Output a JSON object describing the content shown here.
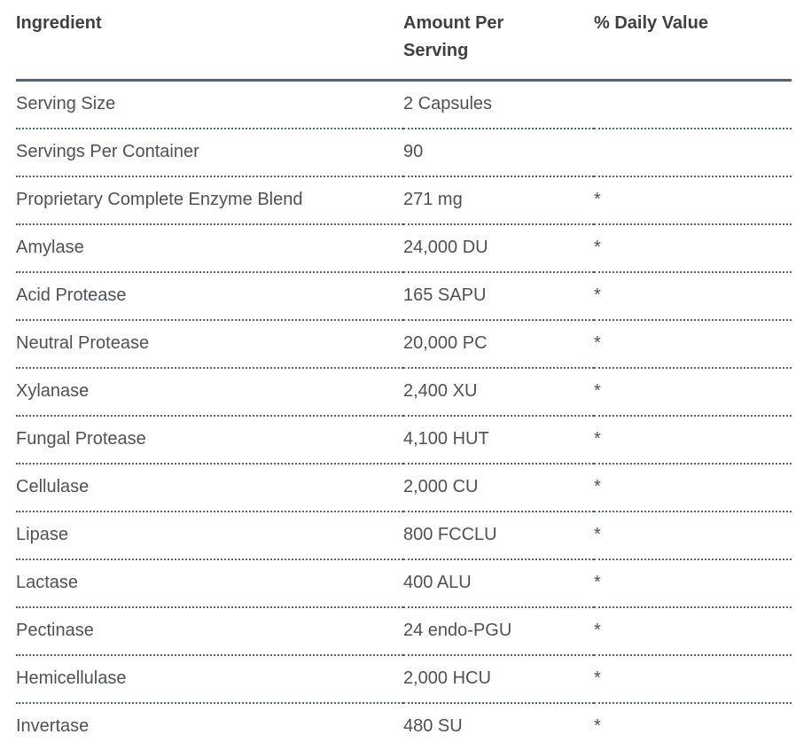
{
  "table": {
    "columns": [
      {
        "key": "ingredient",
        "label": "Ingredient"
      },
      {
        "key": "amount",
        "label": "Amount Per Serving"
      },
      {
        "key": "dv",
        "label": "% Daily Value"
      }
    ],
    "rows": [
      {
        "ingredient": "Serving Size",
        "amount": "2 Capsules",
        "dv": ""
      },
      {
        "ingredient": "Servings Per Container",
        "amount": "90",
        "dv": ""
      },
      {
        "ingredient": "Proprietary Complete Enzyme Blend",
        "amount": "271 mg",
        "dv": "*"
      },
      {
        "ingredient": "Amylase",
        "amount": "24,000 DU",
        "dv": "*"
      },
      {
        "ingredient": "Acid Protease",
        "amount": "165 SAPU",
        "dv": "*"
      },
      {
        "ingredient": "Neutral Protease",
        "amount": "20,000 PC",
        "dv": "*"
      },
      {
        "ingredient": "Xylanase",
        "amount": "2,400 XU",
        "dv": "*"
      },
      {
        "ingredient": "Fungal Protease",
        "amount": "4,100 HUT",
        "dv": "*"
      },
      {
        "ingredient": "Cellulase",
        "amount": "2,000 CU",
        "dv": "*"
      },
      {
        "ingredient": "Lipase",
        "amount": "800 FCCLU",
        "dv": "*"
      },
      {
        "ingredient": "Lactase",
        "amount": "400 ALU",
        "dv": "*"
      },
      {
        "ingredient": "Pectinase",
        "amount": "24 endo-PGU",
        "dv": "*"
      },
      {
        "ingredient": "Hemicellulase",
        "amount": "2,000 HCU",
        "dv": "*"
      },
      {
        "ingredient": "Invertase",
        "amount": "480 SU",
        "dv": "*"
      }
    ],
    "colors": {
      "header_text": "#3e4144",
      "body_text": "#4e5257",
      "border": "#56636c",
      "background": "#ffffff"
    }
  }
}
